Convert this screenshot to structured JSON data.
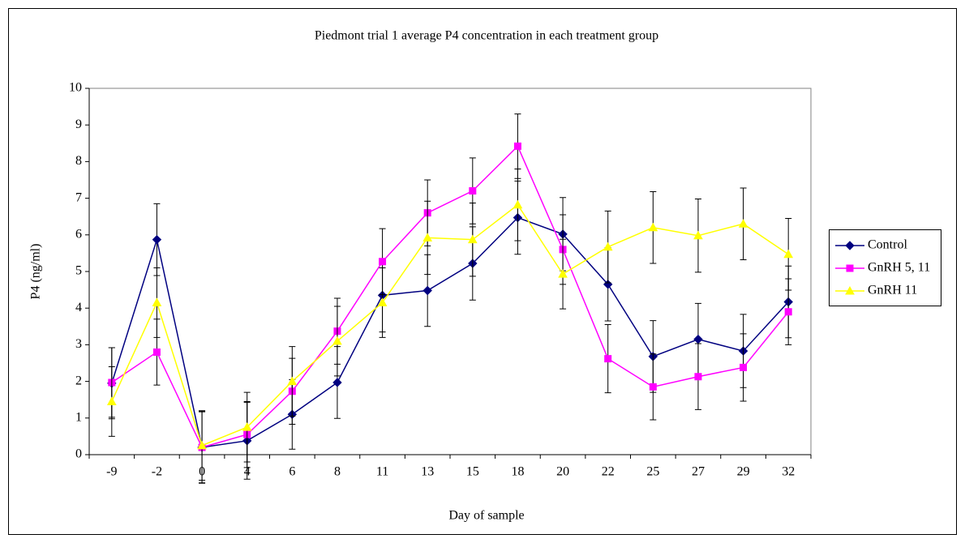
{
  "chart_data": {
    "type": "line",
    "title": "Piedmont trial 1 average P4 concentration in each treatment group",
    "x_label": "Day of sample",
    "y_label": "P4 (ng/ml)",
    "categories": [
      "-9",
      "-2",
      "0",
      "4",
      "6",
      "8",
      "11",
      "13",
      "15",
      "18",
      "20",
      "22",
      "25",
      "27",
      "29",
      "32"
    ],
    "ylim": [
      0,
      10
    ],
    "yticks": [
      0,
      1,
      2,
      3,
      4,
      5,
      6,
      7,
      8,
      9,
      10
    ],
    "legend": "right",
    "series": [
      {
        "name": "Control",
        "color": "#000080",
        "marker": "diamond",
        "values": [
          1.95,
          5.87,
          0.2,
          0.38,
          1.1,
          1.97,
          4.35,
          4.48,
          5.22,
          6.47,
          6.02,
          4.65,
          2.68,
          3.15,
          2.83,
          4.17
        ],
        "errors": [
          0.97,
          0.98,
          0.97,
          1.05,
          0.95,
          0.98,
          1.0,
          0.98,
          1.0,
          1.0,
          1.0,
          1.0,
          0.98,
          0.98,
          1.0,
          0.98
        ]
      },
      {
        "name": "GnRH 5, 11",
        "color": "#FF00FF",
        "marker": "square",
        "values": [
          1.97,
          2.8,
          0.2,
          0.55,
          1.73,
          3.37,
          5.27,
          6.6,
          7.2,
          8.42,
          5.6,
          2.62,
          1.85,
          2.13,
          2.38,
          3.9
        ],
        "errors": [
          0.95,
          0.9,
          0.98,
          0.9,
          0.9,
          0.9,
          0.9,
          0.9,
          0.9,
          0.88,
          0.95,
          0.93,
          0.9,
          0.9,
          0.92,
          0.9
        ]
      },
      {
        "name": "GnRH 11",
        "color": "#FFFF00",
        "marker": "triangle",
        "values": [
          1.45,
          4.15,
          0.25,
          0.75,
          2.0,
          3.1,
          4.15,
          5.92,
          5.87,
          6.82,
          4.93,
          5.67,
          6.2,
          5.98,
          6.3,
          5.47
        ],
        "errors": [
          0.95,
          0.95,
          0.95,
          0.95,
          0.95,
          0.95,
          0.95,
          1.0,
          1.0,
          0.98,
          0.95,
          0.98,
          0.98,
          1.0,
          0.98,
          0.98
        ]
      }
    ]
  }
}
